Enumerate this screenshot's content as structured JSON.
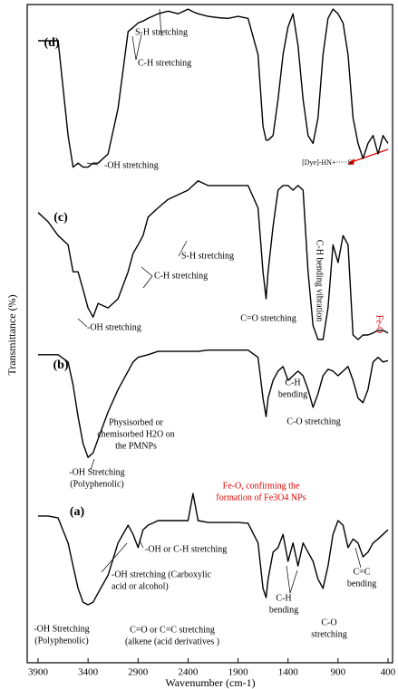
{
  "chart_data": {
    "type": "line",
    "x_label": "Wavenumber (cm-1)",
    "y_label": "Transmittance (%)",
    "xlim": [
      3900,
      400
    ],
    "xticks": [
      3900,
      3400,
      2900,
      2400,
      1900,
      1400,
      900,
      400
    ],
    "ylim": [
      0,
      100
    ],
    "x": [
      3900,
      3800,
      3700,
      3600,
      3550,
      3500,
      3450,
      3400,
      3350,
      3300,
      3200,
      3100,
      3000,
      2950,
      2900,
      2850,
      2800,
      2700,
      2600,
      2500,
      2400,
      2350,
      2300,
      2200,
      2100,
      2000,
      1900,
      1800,
      1700,
      1650,
      1620,
      1600,
      1550,
      1500,
      1450,
      1400,
      1350,
      1300,
      1250,
      1200,
      1150,
      1100,
      1050,
      1000,
      950,
      900,
      850,
      800,
      750,
      700,
      650,
      600,
      550,
      500,
      450,
      400
    ],
    "series": [
      {
        "name": "(a)",
        "color": "#000000",
        "values": [
          22.3,
          22.3,
          22.0,
          18.2,
          14.7,
          11.3,
          9.2,
          8.8,
          9.2,
          10.6,
          13.3,
          18.2,
          20.9,
          19.5,
          17.5,
          20.2,
          20.9,
          21.6,
          21.6,
          21.6,
          21.6,
          25.7,
          21.6,
          21.3,
          21.3,
          21.3,
          21.3,
          21.2,
          18.2,
          11.3,
          9.9,
          12.7,
          16.8,
          17.5,
          19.5,
          15.4,
          18.2,
          14.7,
          18.2,
          16.8,
          15.4,
          12.7,
          11.3,
          14.7,
          19.5,
          21.6,
          20.9,
          17.5,
          18.8,
          18.2,
          16.1,
          16.8,
          18.2,
          18.8,
          19.5,
          20.2
        ]
      },
      {
        "name": "(b)",
        "color": "#000000",
        "values": [
          46.8,
          46.8,
          46.8,
          45.7,
          42.2,
          37.4,
          33.3,
          31.2,
          31.9,
          34.0,
          38.1,
          41.5,
          44.3,
          45.7,
          46.4,
          46.6,
          46.8,
          47.3,
          47.3,
          47.3,
          47.3,
          47.3,
          47.3,
          47.5,
          47.5,
          47.5,
          47.5,
          47.5,
          46.4,
          40.2,
          37.4,
          40.2,
          42.9,
          44.3,
          45.0,
          42.9,
          43.6,
          44.3,
          43.6,
          41.5,
          38.8,
          40.9,
          43.6,
          44.6,
          44.3,
          43.6,
          44.3,
          45.0,
          42.9,
          40.2,
          39.5,
          41.5,
          45.7,
          46.4,
          45.7,
          45.9
        ]
      },
      {
        "name": "(c)",
        "color": "#000000",
        "values": [
          68.4,
          67.0,
          64.9,
          63.5,
          59.4,
          59.4,
          56.7,
          53.9,
          52.5,
          54.6,
          53.9,
          55.3,
          59.4,
          62.2,
          63.5,
          64.9,
          67.7,
          69.1,
          70.4,
          71.1,
          71.8,
          72.5,
          73.2,
          72.5,
          72.5,
          72.5,
          72.5,
          72.5,
          69.1,
          59.4,
          55.3,
          59.4,
          66.3,
          71.8,
          72.5,
          72.5,
          71.8,
          72.5,
          71.8,
          59.4,
          51.2,
          49.1,
          49.1,
          53.9,
          63.5,
          60.8,
          64.9,
          63.5,
          49.8,
          49.1,
          49.8,
          49.8,
          50.1,
          50.5,
          50.5,
          50.1
        ]
      },
      {
        "name": "(d)",
        "color": "#000000",
        "values": [
          94.5,
          94.5,
          94.5,
          80.1,
          75.3,
          75.9,
          75.3,
          75.3,
          75.9,
          75.9,
          77.3,
          84.2,
          95.9,
          96.5,
          97.2,
          97.5,
          97.9,
          98.6,
          99.0,
          98.6,
          99.3,
          98.9,
          98.6,
          98.2,
          98.0,
          97.9,
          98.2,
          97.9,
          92.4,
          81.5,
          79.4,
          79.4,
          80.1,
          85.6,
          92.4,
          96.6,
          98.6,
          93.8,
          85.6,
          80.1,
          78.9,
          82.8,
          92.4,
          97.9,
          99.3,
          98.6,
          97.2,
          92.4,
          82.8,
          78.9,
          76.6,
          78.9,
          80.1,
          77.3,
          80.1,
          78.9
        ]
      }
    ],
    "annotations": [
      {
        "lines": [
          "S-H stretching"
        ],
        "color": "#000000"
      },
      {
        "lines": [
          "C-H stretching"
        ],
        "color": "#000000"
      },
      {
        "lines": [
          "-OH stretching"
        ],
        "color": "#000000"
      },
      {
        "lines": [
          "[Dye]-HN+·····S-"
        ],
        "color": "#000000"
      },
      {
        "lines": [
          "S-H stretching"
        ],
        "color": "#000000"
      },
      {
        "lines": [
          "C-H stretching"
        ],
        "color": "#000000"
      },
      {
        "lines": [
          "-OH stretching"
        ],
        "color": "#000000"
      },
      {
        "lines": [
          "C=O stretching"
        ],
        "color": "#000000"
      },
      {
        "lines": [
          "C-H bending vibration"
        ],
        "color": "#000000"
      },
      {
        "lines": [
          "Fe-O"
        ],
        "color": "#e00000"
      },
      {
        "lines": [
          "C-H",
          "bending"
        ],
        "color": "#000000"
      },
      {
        "lines": [
          "C-O stretching"
        ],
        "color": "#000000"
      },
      {
        "lines": [
          "Physisorbed or",
          "chemisorbed  H2O on",
          "the PMNPs"
        ],
        "color": "#000000"
      },
      {
        "lines": [
          "-OH Stretching",
          "(Polyphenolic)"
        ],
        "color": "#000000"
      },
      {
        "lines": [
          "Fe-O, confirming the",
          "formation of Fe3O4 NPs"
        ],
        "color": "#e00000"
      },
      {
        "lines": [
          "-OH or C-H stretching"
        ],
        "color": "#000000"
      },
      {
        "lines": [
          "-OH stretching (Carboxylic",
          "acid or alcohol)"
        ],
        "color": "#000000"
      },
      {
        "lines": [
          "-OH Stretching",
          "(Polyphenolic)"
        ],
        "color": "#000000"
      },
      {
        "lines": [
          "C=O  or  C=C stretching",
          "(alkene (acid derivatives )"
        ],
        "color": "#000000"
      },
      {
        "lines": [
          "C-H",
          "bending"
        ],
        "color": "#000000"
      },
      {
        "lines": [
          "C=C",
          "bending"
        ],
        "color": "#000000"
      },
      {
        "lines": [
          "C-O",
          "stretching"
        ],
        "color": "#000000"
      }
    ]
  }
}
